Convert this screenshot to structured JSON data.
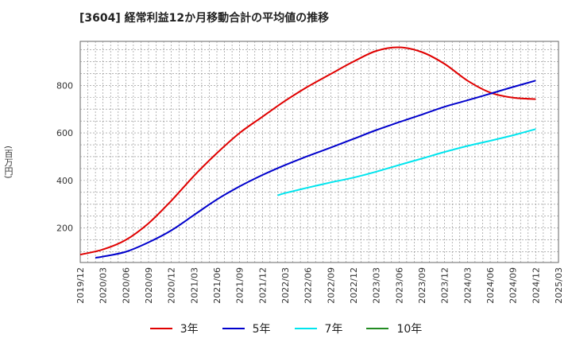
{
  "title": "[3604]  経常利益12か月移動合計の平均値の推移",
  "y_unit_label": "(百万円)",
  "chart_data": {
    "type": "line",
    "title": "[3604]  経常利益12か月移動合計の平均値の推移",
    "ylabel": "(百万円)",
    "xlabel": "",
    "grid": true,
    "legend_position": "bottom",
    "x_ticks": [
      "2019/12",
      "2020/03",
      "2020/06",
      "2020/09",
      "2020/12",
      "2021/03",
      "2021/06",
      "2021/09",
      "2021/12",
      "2022/03",
      "2022/06",
      "2022/09",
      "2022/12",
      "2023/03",
      "2023/06",
      "2023/09",
      "2023/12",
      "2024/03",
      "2024/06",
      "2024/09",
      "2024/12",
      "2025/03"
    ],
    "y_ticks": [
      200,
      400,
      600,
      800
    ],
    "ylim": [
      55,
      985
    ],
    "series": [
      {
        "name": "3年",
        "color": "#e00000",
        "x": [
          "2019/12",
          "2020/03",
          "2020/06",
          "2020/09",
          "2020/12",
          "2021/03",
          "2021/06",
          "2021/09",
          "2021/12",
          "2022/03",
          "2022/06",
          "2022/09",
          "2022/12",
          "2023/03",
          "2023/06",
          "2023/09",
          "2023/12",
          "2024/03",
          "2024/06",
          "2024/09",
          "2024/12"
        ],
        "values": [
          88,
          110,
          150,
          220,
          315,
          420,
          515,
          600,
          668,
          735,
          795,
          848,
          900,
          945,
          960,
          940,
          890,
          820,
          770,
          748,
          742
        ]
      },
      {
        "name": "5年",
        "color": "#0000cc",
        "x": [
          "2020/02",
          "2020/03",
          "2020/06",
          "2020/09",
          "2020/12",
          "2021/03",
          "2021/06",
          "2021/09",
          "2021/12",
          "2022/03",
          "2022/06",
          "2022/09",
          "2022/12",
          "2023/03",
          "2023/06",
          "2023/09",
          "2023/12",
          "2024/03",
          "2024/06",
          "2024/09",
          "2024/12"
        ],
        "values": [
          75,
          80,
          100,
          140,
          190,
          255,
          320,
          375,
          423,
          465,
          503,
          538,
          575,
          612,
          645,
          677,
          710,
          737,
          765,
          793,
          820
        ]
      },
      {
        "name": "7年",
        "color": "#00e5ee",
        "x": [
          "2022/02",
          "2022/03",
          "2022/06",
          "2022/09",
          "2022/12",
          "2023/03",
          "2023/06",
          "2023/09",
          "2023/12",
          "2024/03",
          "2024/06",
          "2024/09",
          "2024/12"
        ],
        "values": [
          337,
          347,
          370,
          392,
          412,
          437,
          465,
          492,
          520,
          545,
          567,
          590,
          616
        ]
      },
      {
        "name": "10年",
        "color": "#228b22",
        "x": [],
        "values": []
      }
    ]
  }
}
